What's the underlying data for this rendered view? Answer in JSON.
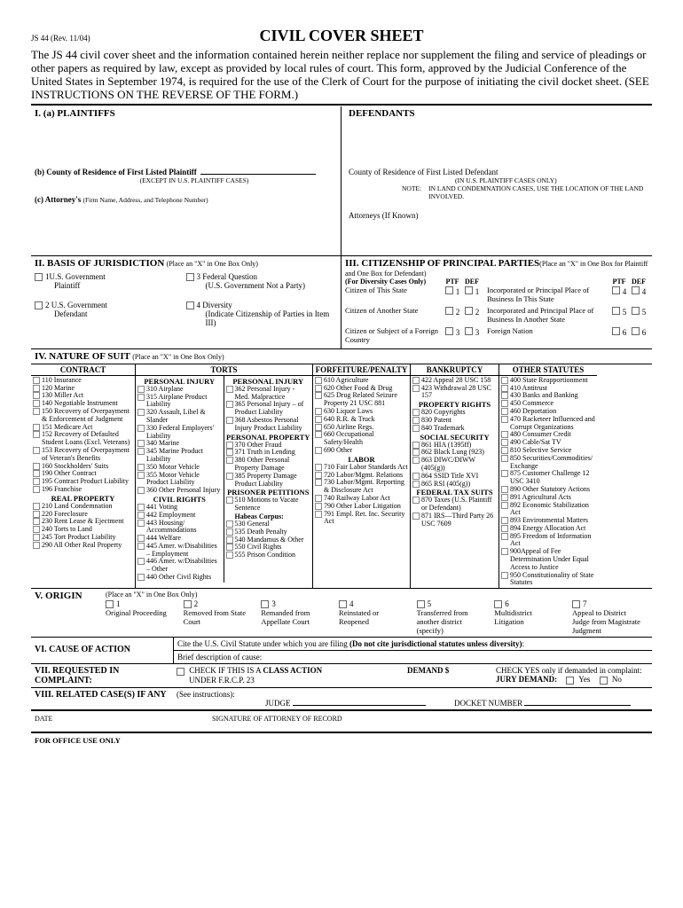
{
  "form_id": "JS 44 (Rev. 11/04)",
  "title": "CIVIL COVER SHEET",
  "intro": "The JS 44 civil cover sheet and the information contained herein neither replace nor supplement the filing and service of pleadings or other papers as required by law, except as provided by local rules of court. This form, approved by the Judicial Conference of the United States in September 1974, is required for the use of the Clerk of Court for the purpose of initiating the civil docket sheet. (SEE INSTRUCTIONS ON THE REVERSE OF THE FORM.)",
  "sec_i": {
    "a_label": "I.   (a)   PLAINTIFFS",
    "b_label": "(b)   County of Residence of First Listed Plaintiff",
    "b_note": "(EXCEPT IN U.S. PLAINTIFF CASES)",
    "c_label": "(c)   Attorney's",
    "c_note": "(Firm Name, Address, and Telephone Number)",
    "def_label": "DEFENDANTS",
    "def_county": "County of Residence of First Listed Defendant",
    "def_note1": "(IN U.S. PLAINTIFF CASES ONLY)",
    "def_note2": "IN LAND CONDEMNATION CASES, USE THE LOCATION OF THE LAND INVOLVED.",
    "def_note2_prefix": "NOTE:",
    "def_attorneys": "Attorneys (If Known)"
  },
  "sec_ii": {
    "title": "II. BASIS OF JURISDICTION",
    "paren": "(Place an \"X\" in One Box Only)",
    "items": [
      {
        "num": "1",
        "label": "U.S. Government",
        "sub": "Plaintiff"
      },
      {
        "num": "3",
        "label": "Federal Question",
        "sub": "(U.S. Government Not a Party)"
      },
      {
        "num": "2",
        "label": "U.S. Government",
        "sub": "Defendant"
      },
      {
        "num": "4",
        "label": "Diversity",
        "sub": "(Indicate Citizenship of Parties in Item III)"
      }
    ]
  },
  "sec_iii": {
    "title": "III. CITIZENSHIP OF PRINCIPAL PARTIES",
    "paren": "(Place an \"X\" in One Box for Plaintiff and One Box for Defendant)",
    "sub": "(For Diversity Cases Only)",
    "ptf": "PTF",
    "def": "DEF",
    "rows": [
      {
        "l": "Citizen of This State",
        "n": "1",
        "r": "Incorporated or Principal Place of Business In This State",
        "rn": "4"
      },
      {
        "l": "Citizen of Another State",
        "n": "2",
        "r": "Incorporated and Principal Place of Business In Another State",
        "rn": "5"
      },
      {
        "l": "Citizen or Subject of a Foreign Country",
        "n": "3",
        "r": "Foreign Nation",
        "rn": "6"
      }
    ]
  },
  "sec_iv": {
    "title": "IV. NATURE OF SUIT",
    "paren": "(Place an \"X\" in One Box Only)",
    "cols": [
      {
        "head": "CONTRACT",
        "groups": [
          {
            "items": [
              "110 Insurance",
              "120 Marine",
              "130 Miller Act",
              "140 Negotiable Instrument",
              "150 Recovery of Overpayment & Enforcement of Judgment",
              "151 Medicare Act",
              "152 Recovery of Defaulted Student Loans (Excl. Veterans)",
              "153 Recovery of Overpayment of Veteran's Benefits",
              "160 Stockholders' Suits",
              "190 Other Contract",
              "195 Contract Product Liability",
              "196 Franchise"
            ]
          },
          {
            "sub": "REAL PROPERTY",
            "items": [
              "210 Land Condemnation",
              "220 Foreclosure",
              "230 Rent Lease & Ejectment",
              "240 Torts to Land",
              "245 Tort Product Liability",
              "290 All Other Real Property"
            ]
          }
        ]
      },
      {
        "head": "TORTS",
        "span2": true,
        "left": [
          {
            "sub": "PERSONAL INJURY",
            "items": [
              "310 Airplane",
              "315 Airplane Product Liability",
              "320 Assault, Libel & Slander",
              "330 Federal Employers' Liability",
              "340 Marine",
              "345 Marine Product Liability",
              "350 Motor Vehicle",
              "355 Motor Vehicle Product Liability",
              "360 Other Personal Injury"
            ]
          },
          {
            "sub": "CIVIL RIGHTS",
            "items": [
              "441 Voting",
              "442 Employment",
              "443 Housing/ Accommodations",
              "444 Welfare",
              "445 Amer. w/Disabilities – Employment",
              "446 Amer. w/Disabilities – Other",
              "440 Other Civil Rights"
            ]
          }
        ],
        "right": [
          {
            "sub": "PERSONAL INJURY",
            "items": [
              "362 Personal Injury - Med. Malpractice",
              "365 Personal Injury – of Product Liability",
              "368 Asbestos Personal Injury Product Liability"
            ]
          },
          {
            "sub": "PERSONAL PROPERTY",
            "items": [
              "370 Other Fraud",
              "371 Truth in Lending",
              "380 Other Personal Property Damage",
              "385 Property Damage Product Liability"
            ]
          },
          {
            "sub": "PRISONER PETITIONS",
            "items": [
              "510 Motions to Vacate Sentence"
            ],
            "bold": "Habeas Corpus:",
            "items2": [
              "530 General",
              "535 Death Penalty",
              "540 Mandamus & Other",
              "550 Civil Rights",
              "555 Prison Condition"
            ]
          }
        ]
      },
      {
        "head": "FORFEITURE/PENALTY",
        "groups": [
          {
            "items": [
              "610 Agriculture",
              "620 Other Food & Drug",
              "625 Drug Related Seizure Property 21 USC 881",
              "630 Liquor Laws",
              "640 R.R. & Truck",
              "650 Airline Regs.",
              "660 Occupational Safety/Health",
              "690 Other"
            ]
          },
          {
            "sub": "LABOR",
            "items": [
              "710 Fair Labor Standards Act",
              "720 Labor/Mgmt. Relations",
              "730 Labor/Mgmt. Reporting & Disclosure Act",
              "740 Railway Labor Act",
              "790 Other Labor Litigation",
              "791 Empl. Ret. Inc. Security Act"
            ]
          }
        ]
      },
      {
        "head": "BANKRUPTCY",
        "groups": [
          {
            "items": [
              "422 Appeal 28 USC 158",
              "423 Withdrawal 28 USC 157"
            ]
          },
          {
            "sub": "PROPERTY RIGHTS",
            "items": [
              "820 Copyrights",
              "830 Patent",
              "840 Trademark"
            ]
          },
          {
            "sub": "SOCIAL SECURITY",
            "items": [
              "861 HIA (1395ff)",
              "862 Black Lung (923)",
              "863 DIWC/DIWW (405(g))",
              "864 SSID Title XVI",
              "865 RSI (405(g))"
            ]
          },
          {
            "sub": "FEDERAL TAX SUITS",
            "items": [
              "870 Taxes (U.S. Plaintiff or Defendant)",
              "871 IRS—Third Party 26 USC 7609"
            ]
          }
        ]
      },
      {
        "head": "OTHER STATUTES",
        "groups": [
          {
            "items": [
              "400 State Reapportionment",
              "410 Antitrust",
              "430 Banks and Banking",
              "450 Commerce",
              "460 Deportation",
              "470 Racketeer Influenced and Corrupt Organizations",
              "480 Consumer Credit",
              "490 Cable/Sat TV",
              "810 Selective Service",
              "850 Securities/Commodities/ Exchange",
              "875 Customer Challenge 12 USC 3410",
              "890 Other Statutory Actions",
              "891 Agricultural Acts",
              "892 Economic Stabilization Act",
              "893 Environmental Matters",
              "894 Energy Allocation Act",
              "895 Freedom of Information Act",
              "900Appeal of Fee Determination Under Equal Access to Justice",
              "950 Constitutionality of State Statutes"
            ]
          }
        ]
      }
    ]
  },
  "sec_v": {
    "title": "V. ORIGIN",
    "paren": "(Place an \"X\" in One Box Only)",
    "items": [
      {
        "n": "1",
        "l": "Original Proceeding"
      },
      {
        "n": "2",
        "l": "Removed from State Court"
      },
      {
        "n": "3",
        "l": "Remanded from Appellate Court"
      },
      {
        "n": "4",
        "l": "Reinstated or Reopened"
      },
      {
        "n": "5",
        "l": "Transferred from another district (specify)"
      },
      {
        "n": "6",
        "l": "Multidistrict Litigation"
      },
      {
        "n": "7",
        "l": "Appeal to District Judge from Magistrate Judgment"
      }
    ]
  },
  "sec_vi": {
    "title": "VI. CAUSE OF ACTION",
    "line1": "Cite the U.S. Civil Statute under which you are filing ",
    "line1b": "(Do not cite jurisdictional statutes unless diversity)",
    "line2": "Brief description of cause:"
  },
  "sec_vii": {
    "title": "VII. REQUESTED IN COMPLAINT:",
    "check_label": "CHECK IF THIS IS A ",
    "class_action": "CLASS ACTION",
    "under": "UNDER F.R.C.P. 23",
    "demand": "DEMAND $",
    "jury_prefix": "CHECK YES only if demanded in complaint:",
    "jury_label": "JURY DEMAND:",
    "yes": "Yes",
    "no": "No"
  },
  "sec_viii": {
    "title": "VIII. RELATED CASE(S) IF ANY",
    "see": "(See instructions):",
    "judge": "JUDGE",
    "docket": "DOCKET NUMBER"
  },
  "date_sig": {
    "date": "DATE",
    "sig": "SIGNATURE OF ATTORNEY OF RECORD"
  },
  "office": "FOR OFFICE USE ONLY"
}
